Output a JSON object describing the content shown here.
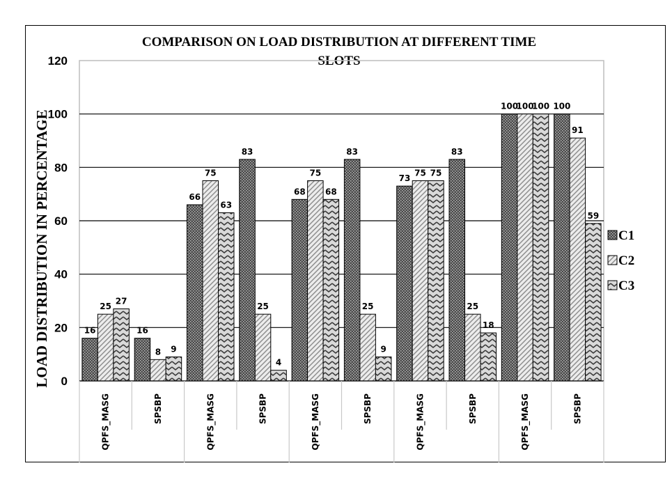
{
  "chart_data": {
    "type": "bar",
    "title": "COMPARISON ON LOAD DISTRIBUTION AT DIFFERENT TIME SLOTS",
    "title_lines": [
      "COMPARISON ON LOAD DISTRIBUTION AT DIFFERENT TIME",
      "SLOTS"
    ],
    "ylabel": "LOAD DISTRIBUTION IN PERCENTAGE",
    "xlabel": "",
    "ylim": [
      0,
      120
    ],
    "yticks": [
      0,
      20,
      40,
      60,
      80,
      100,
      120
    ],
    "grid": true,
    "legend_position": "right",
    "categories": [
      "QPFS_MASG",
      "SPSBP",
      "QPFS_MASG",
      "SPSBP",
      "QPFS_MASG",
      "SPSBP",
      "QPFS_MASG",
      "SPSBP",
      "QPFS_MASG",
      "SPSBP"
    ],
    "series": [
      {
        "name": "C1",
        "values": [
          16,
          16,
          66,
          83,
          68,
          83,
          73,
          83,
          100,
          100
        ],
        "pattern": "dots-dark"
      },
      {
        "name": "C2",
        "values": [
          25,
          8,
          75,
          25,
          75,
          25,
          75,
          25,
          100,
          91
        ],
        "pattern": "diagonal-light"
      },
      {
        "name": "C3",
        "values": [
          27,
          9,
          63,
          4,
          68,
          9,
          75,
          18,
          100,
          59
        ],
        "pattern": "zigzag"
      }
    ]
  }
}
